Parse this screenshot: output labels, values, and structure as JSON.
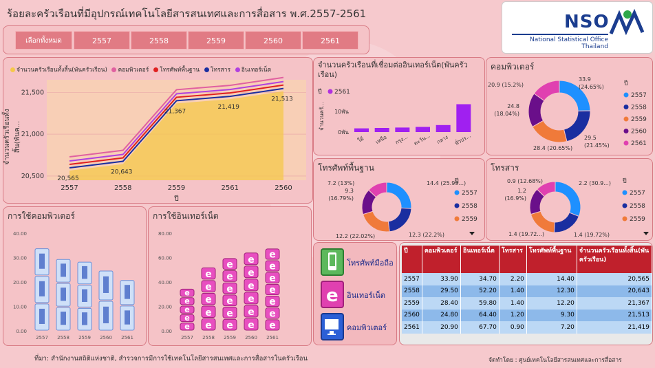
{
  "title": "ร้อยละครัวเรือนที่มีอุปกรณ์เทคโนโลยีสารสนเทศและการสื่อสาร พ.ศ.2557-2561",
  "logo": {
    "name": "NSO",
    "line1": "National Statistical Office",
    "line2": "Thailand"
  },
  "year_filter": [
    "เลือกทั้งหมด",
    "2557",
    "2558",
    "2559",
    "2560",
    "2561"
  ],
  "colors": {
    "blue": "#1e90ff",
    "navy": "#1a2ea0",
    "orange": "#f07a3a",
    "purple": "#6a0f8a",
    "magenta": "#e040b0",
    "red": "#e02020",
    "yellow": "#f5c84a",
    "pink_line": "#e060a0"
  },
  "line_chart": {
    "legend": [
      {
        "label": "จำนวนครัวเรือนทั้งสิ้น(พันครัวเรือน)",
        "color": "#f5c84a"
      },
      {
        "label": "คอมพิวเตอร์",
        "color": "#e060a0"
      },
      {
        "label": "โทรศัพท์พื้นฐาน",
        "color": "#e02020"
      },
      {
        "label": "โทรสาร",
        "color": "#1a2ea0"
      },
      {
        "label": "อินเทอร์เน็ต",
        "color": "#b040e0"
      }
    ],
    "ylabel": "จำนวนครัวเรือนทั้งสิ้น(พันค...",
    "xlabel": "ปี",
    "yticks": [
      "20,500",
      "21,000",
      "21,500"
    ]
  },
  "internet_panel": {
    "title": "จำนวนครัวเรือนที่เชื่อมต่ออินเทอร์เน็ต(พันครัวเรือน)",
    "legend_title": "ปี",
    "legend_item": "2561",
    "ylabel": "จำนวนครั...",
    "yticks": [
      "0พัน",
      "10พัน"
    ],
    "categories": [
      "ใต้",
      "เหนือ",
      "กรุง...",
      "ตะวัน...",
      "กลาง",
      "ทั่วปร..."
    ]
  },
  "computer_donut": {
    "title": "คอมพิวเตอร์",
    "legend_title": "ปี",
    "labels": [
      "33.9",
      "(24.65%)",
      "29.5",
      "(21.45%)",
      "28.4 (20.65%)",
      "24.8",
      "(18.04%)",
      "20.9 (15.2%)"
    ],
    "years": [
      "2557",
      "2558",
      "2559",
      "2560",
      "2561"
    ]
  },
  "phone_donut": {
    "title": "โทรศัพท์พื้นฐาน",
    "legend_title": "ปี",
    "labels": [
      "14.4 (25.99...)",
      "12.3 (22.2%)",
      "12.2 (22.02%)",
      "9.3",
      "(16.79%)",
      "7.2 (13%)"
    ],
    "years": [
      "2557",
      "2558",
      "2559"
    ]
  },
  "fax_donut": {
    "title": "โทรสาร",
    "legend_title": "ปี",
    "labels": [
      "2.2 (30.9...)",
      "1.4 (19.72%)",
      "1.4 (19.72...)",
      "1.2",
      "(16.9%)",
      "0.9 (12.68%)"
    ],
    "years": [
      "2557",
      "2558",
      "2559"
    ]
  },
  "computer_use": {
    "title": "การใช้คอมพิวเตอร์",
    "yticks": [
      "0.00",
      "10.00",
      "20.00",
      "30.00",
      "40.00"
    ],
    "categories": [
      "2557",
      "2558",
      "2559",
      "2560",
      "2561"
    ]
  },
  "internet_use": {
    "title": "การใช้อินเทอร์เน็ต",
    "yticks": [
      "0.00",
      "20.00",
      "40.00",
      "60.00",
      "80.00"
    ],
    "categories": [
      "2557",
      "2558",
      "2559",
      "2560",
      "2561"
    ]
  },
  "icons_legend": [
    {
      "label": "โทรศัพท์มือถือ",
      "icon": "mobile-phone-icon"
    },
    {
      "label": "อินเทอร์เน็ต",
      "icon": "internet-explorer-icon"
    },
    {
      "label": "คอมพิวเตอร์",
      "icon": "desktop-computer-icon"
    }
  ],
  "table": {
    "headers": [
      "ปี",
      "คอมพิวเตอร์",
      "อินเทอร์เน็ต",
      "โทรสาร",
      "โทรศัพท์พื้นฐาน",
      "จำนวนครัวเรือนทั้งสิ้น(พันครัวเรือน)"
    ],
    "rows": [
      [
        "2557",
        "33.90",
        "34.70",
        "2.20",
        "14.40",
        "20,565"
      ],
      [
        "2558",
        "29.50",
        "52.20",
        "1.40",
        "12.30",
        "20,643"
      ],
      [
        "2559",
        "28.40",
        "59.80",
        "1.40",
        "12.20",
        "21,367"
      ],
      [
        "2560",
        "24.80",
        "64.40",
        "1.20",
        "9.30",
        "21,513"
      ],
      [
        "2561",
        "20.90",
        "67.70",
        "0.90",
        "7.20",
        "21,419"
      ]
    ]
  },
  "footer": {
    "source": "ที่มา: สำนักงานสถิติแห่งชาติ, สำรวจการมีการใช้เทคโนโลยีสารสนเทศและการสื่อสารในครัวเรือน",
    "credit": "จัดทำโดย : ศูนย์เทคโนโลยีสารสนเทศและการสื่อสาร"
  },
  "chart_data": [
    {
      "type": "area",
      "categories": [
        "2557",
        "2558",
        "2559",
        "2561",
        "2560"
      ],
      "series": [
        {
          "name": "จำนวนครัวเรือนทั้งสิ้น(พันครัวเรือน)",
          "values": [
            20565,
            20643,
            21367,
            21419,
            21513
          ]
        }
      ],
      "data_labels": [
        "20,565",
        "20,643",
        "21,367",
        "21,419",
        "21,513"
      ],
      "ylim": [
        20450,
        21650
      ]
    },
    {
      "type": "bar",
      "categories": [
        "ใต้",
        "เหนือ",
        "กรุง...",
        "ตะวัน...",
        "กลาง",
        "ทั่วปร..."
      ],
      "series": [
        {
          "name": "2561",
          "values": [
            1.8,
            2.0,
            2.2,
            2.5,
            3.4,
            13.5
          ]
        }
      ],
      "ylim": [
        0,
        16
      ]
    },
    {
      "type": "pie",
      "categories": [
        "2557",
        "2558",
        "2559",
        "2560",
        "2561"
      ],
      "values": [
        33.9,
        29.5,
        28.4,
        24.8,
        20.9
      ]
    },
    {
      "type": "pie",
      "categories": [
        "2557",
        "2558",
        "2559",
        "2560",
        "2561"
      ],
      "values": [
        14.4,
        12.3,
        12.2,
        9.3,
        7.2
      ]
    },
    {
      "type": "pie",
      "categories": [
        "2557",
        "2558",
        "2559",
        "2560",
        "2561"
      ],
      "values": [
        2.2,
        1.4,
        1.4,
        1.2,
        0.9
      ]
    },
    {
      "type": "bar",
      "categories": [
        "2557",
        "2558",
        "2559",
        "2560",
        "2561"
      ],
      "values": [
        33.9,
        29.5,
        28.4,
        24.8,
        20.9
      ],
      "ylim": [
        0,
        40
      ]
    },
    {
      "type": "bar",
      "categories": [
        "2557",
        "2558",
        "2559",
        "2560",
        "2561"
      ],
      "values": [
        34.7,
        52.2,
        59.8,
        64.4,
        67.7
      ],
      "ylim": [
        0,
        80
      ]
    }
  ]
}
